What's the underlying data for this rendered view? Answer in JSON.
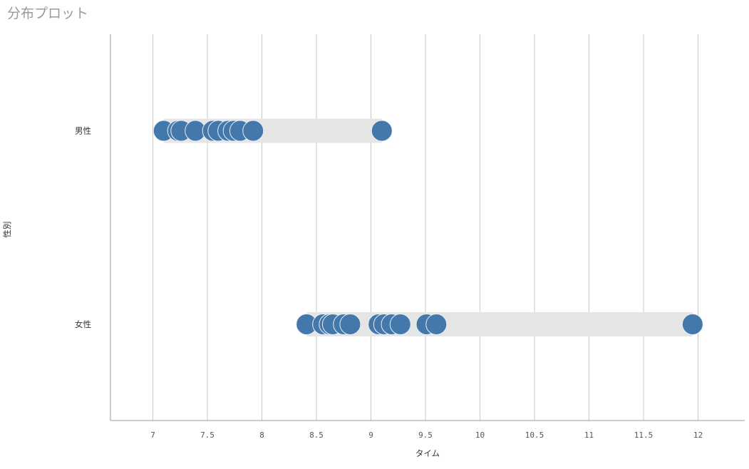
{
  "title": "分布プロット",
  "chart_data": {
    "type": "scatter",
    "title": "分布プロット",
    "xlabel": "タイム",
    "ylabel": "性別",
    "xlim": [
      6.62,
      13.0
    ],
    "xticks": [
      "7",
      "7.5",
      "8",
      "8.5",
      "9",
      "9.5",
      "10",
      "10.5",
      "11",
      "11.5",
      "12"
    ],
    "grid": "vertical",
    "categories": [
      "男性",
      "女性"
    ],
    "series": [
      {
        "category": "男性",
        "x": [
          7.1,
          7.23,
          7.26,
          7.39,
          7.55,
          7.6,
          7.69,
          7.74,
          7.8,
          7.92,
          9.1
        ]
      },
      {
        "category": "女性",
        "x": [
          8.41,
          8.56,
          8.62,
          8.65,
          8.75,
          8.81,
          9.07,
          9.12,
          9.19,
          9.27,
          9.51,
          9.6,
          11.95
        ]
      }
    ],
    "colors": {
      "point": "#4477aa",
      "point_stroke": "#e6eef6",
      "range_band": "#e5e5e5",
      "grid": "#c8c8c8",
      "axis": "#999999"
    }
  }
}
